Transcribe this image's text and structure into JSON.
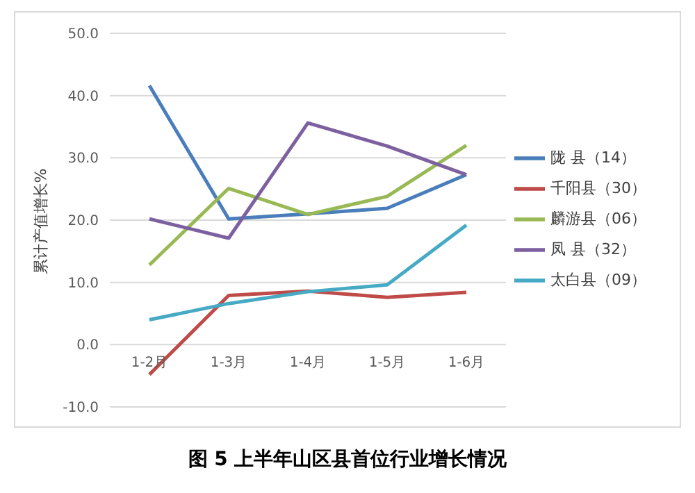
{
  "chart_data": {
    "type": "line",
    "title": "图 5 上半年山区县首位行业增长情况",
    "ylabel": "累计产值增长%",
    "categories": [
      "1-2月",
      "1-3月",
      "1-4月",
      "1-5月",
      "1-6月"
    ],
    "series": [
      {
        "name": "陇 县（14）",
        "color": "#4a7ebb",
        "values": [
          41.6,
          20.2,
          21.0,
          21.9,
          27.3
        ]
      },
      {
        "name": "千阳县（30）",
        "color": "#be4b48",
        "values": [
          -4.8,
          7.9,
          8.6,
          7.6,
          8.4
        ]
      },
      {
        "name": "麟游县（06）",
        "color": "#98b954",
        "values": [
          12.8,
          25.1,
          20.9,
          23.8,
          32.0
        ]
      },
      {
        "name": "凤 县（32）",
        "color": "#7d60a0",
        "values": [
          20.2,
          17.1,
          35.6,
          31.9,
          27.3
        ]
      },
      {
        "name": "太白县（09）",
        "color": "#46aac5",
        "values": [
          4.0,
          6.6,
          8.5,
          9.6,
          19.2
        ]
      }
    ],
    "ylim": [
      -10,
      50
    ],
    "yticks": [
      {
        "value": -10,
        "label": "-10.0"
      },
      {
        "value": 0,
        "label": "0.0"
      },
      {
        "value": 10,
        "label": "10.0"
      },
      {
        "value": 20,
        "label": "20.0"
      },
      {
        "value": 30,
        "label": "30.0"
      },
      {
        "value": 40,
        "label": "40.0"
      },
      {
        "value": 50,
        "label": "50.0"
      }
    ],
    "grid": "y",
    "legend": "right",
    "marker": "none",
    "line_style": "solid"
  }
}
